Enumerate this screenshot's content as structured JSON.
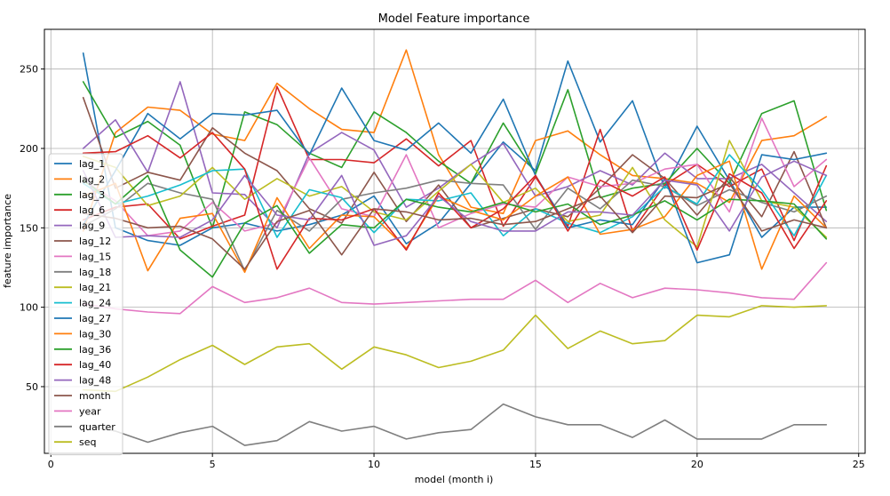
{
  "chart_data": {
    "type": "line",
    "title": "Model Feature importance",
    "xlabel": "model (month i)",
    "ylabel": "feature importance",
    "xlim": [
      -0.2,
      25.2
    ],
    "ylim": [
      8,
      275
    ],
    "xticks": [
      0,
      5,
      10,
      15,
      20,
      25
    ],
    "yticks": [
      50,
      100,
      150,
      200,
      250
    ],
    "grid": true,
    "legend_position": "left",
    "x": [
      1,
      2,
      3,
      4,
      5,
      6,
      7,
      8,
      9,
      10,
      11,
      12,
      13,
      14,
      15,
      16,
      17,
      18,
      19,
      20,
      21,
      22,
      23,
      24
    ],
    "series": [
      {
        "name": "lag_1",
        "color": "#1f77b4",
        "values": [
          260,
          150,
          142,
          139,
          150,
          153,
          148,
          152,
          158,
          170,
          140,
          153,
          178,
          204,
          186,
          255,
          204,
          230,
          175,
          214,
          180,
          144,
          163,
          163
        ]
      },
      {
        "name": "lag_2",
        "color": "#ff7f0e",
        "values": [
          148,
          210,
          226,
          224,
          209,
          205,
          241,
          225,
          212,
          210,
          262,
          196,
          163,
          159,
          205,
          211,
          196,
          183,
          181,
          178,
          166,
          205,
          208,
          220
        ]
      },
      {
        "name": "lag_3",
        "color": "#2ca02c",
        "values": [
          242,
          207,
          217,
          202,
          150,
          223,
          215,
          197,
          188,
          223,
          210,
          192,
          178,
          216,
          184,
          237,
          169,
          175,
          178,
          200,
          178,
          222,
          230,
          161
        ]
      },
      {
        "name": "lag_6",
        "color": "#d62728",
        "values": [
          155,
          163,
          165,
          143,
          151,
          158,
          239,
          193,
          193,
          191,
          206,
          189,
          205,
          151,
          182,
          151,
          212,
          148,
          177,
          190,
          176,
          187,
          142,
          189
        ]
      },
      {
        "name": "lag_9",
        "color": "#9467bd",
        "values": [
          200,
          218,
          185,
          242,
          172,
          171,
          150,
          197,
          210,
          199,
          163,
          175,
          190,
          203,
          170,
          176,
          186,
          177,
          197,
          181,
          181,
          190,
          172,
          154
        ]
      },
      {
        "name": "lag_12",
        "color": "#8c564b",
        "values": [
          232,
          175,
          185,
          180,
          213,
          197,
          186,
          162,
          153,
          185,
          154,
          177,
          150,
          156,
          162,
          157,
          175,
          196,
          181,
          158,
          182,
          157,
          198,
          150
        ]
      },
      {
        "name": "lag_15",
        "color": "#e377c2",
        "values": [
          180,
          167,
          145,
          148,
          166,
          148,
          153,
          194,
          162,
          157,
          196,
          150,
          159,
          165,
          163,
          182,
          176,
          178,
          187,
          190,
          160,
          219,
          176,
          193
        ]
      },
      {
        "name": "lag_18",
        "color": "#7f7f7f",
        "values": [
          151,
          162,
          178,
          172,
          168,
          123,
          161,
          148,
          168,
          172,
          175,
          180,
          178,
          177,
          149,
          175,
          162,
          180,
          176,
          164,
          174,
          166,
          160,
          170
        ]
      },
      {
        "name": "lag_21",
        "color": "#bcbd22",
        "values": [
          195,
          188,
          164,
          170,
          188,
          168,
          181,
          170,
          176,
          160,
          155,
          173,
          190,
          166,
          175,
          154,
          158,
          188,
          155,
          138,
          205,
          167,
          163,
          144
        ]
      },
      {
        "name": "lag_24",
        "color": "#17becf",
        "values": [
          178,
          165,
          170,
          177,
          186,
          187,
          144,
          174,
          169,
          147,
          168,
          167,
          172,
          145,
          162,
          153,
          147,
          157,
          176,
          165,
          196,
          174,
          145,
          183
        ]
      },
      {
        "name": "lag_27",
        "color": "#1f77b4",
        "values": [
          152,
          186,
          222,
          206,
          222,
          221,
          224,
          196,
          238,
          205,
          199,
          216,
          197,
          231,
          183,
          150,
          155,
          152,
          181,
          128,
          133,
          196,
          193,
          197
        ]
      },
      {
        "name": "lag_30",
        "color": "#ff7f0e",
        "values": [
          170,
          178,
          123,
          156,
          159,
          122,
          169,
          137,
          158,
          157,
          137,
          170,
          161,
          155,
          170,
          182,
          146,
          149,
          157,
          183,
          192,
          124,
          170,
          150
        ]
      },
      {
        "name": "lag_36",
        "color": "#2ca02c",
        "values": [
          180,
          165,
          183,
          136,
          119,
          153,
          164,
          134,
          152,
          150,
          168,
          163,
          160,
          166,
          160,
          165,
          152,
          158,
          167,
          155,
          168,
          167,
          165,
          143
        ]
      },
      {
        "name": "lag_40",
        "color": "#d62728",
        "values": [
          197,
          198,
          208,
          194,
          210,
          187,
          124,
          156,
          155,
          162,
          136,
          172,
          150,
          162,
          183,
          148,
          180,
          170,
          182,
          136,
          184,
          172,
          137,
          167
        ]
      },
      {
        "name": "lag_48",
        "color": "#9467bd",
        "values": [
          186,
          144,
          145,
          144,
          155,
          183,
          158,
          155,
          183,
          139,
          145,
          170,
          154,
          148,
          148,
          160,
          160,
          158,
          180,
          177,
          148,
          182,
          192,
          183
        ]
      },
      {
        "name": "month",
        "color": "#8c564b",
        "values": [
          159,
          156,
          150,
          151,
          143,
          124,
          154,
          161,
          133,
          162,
          160,
          155,
          156,
          152,
          154,
          162,
          170,
          147,
          170,
          169,
          178,
          148,
          155,
          150
        ]
      },
      {
        "name": "year",
        "color": "#e377c2",
        "values": [
          102,
          99,
          97,
          96,
          113,
          103,
          106,
          112,
          103,
          102,
          103,
          104,
          105,
          105,
          117,
          103,
          115,
          106,
          112,
          111,
          109,
          106,
          105,
          128
        ]
      },
      {
        "name": "quarter",
        "color": "#7f7f7f",
        "values": [
          26,
          22,
          15,
          21,
          25,
          13,
          16,
          28,
          22,
          25,
          17,
          21,
          23,
          39,
          31,
          26,
          26,
          18,
          29,
          17,
          17,
          17,
          26,
          26
        ]
      },
      {
        "name": "seq",
        "color": "#bcbd22",
        "values": [
          48,
          47,
          56,
          67,
          76,
          64,
          75,
          77,
          61,
          75,
          70,
          62,
          66,
          73,
          95,
          74,
          85,
          77,
          79,
          95,
          94,
          101,
          100,
          101
        ]
      }
    ]
  }
}
